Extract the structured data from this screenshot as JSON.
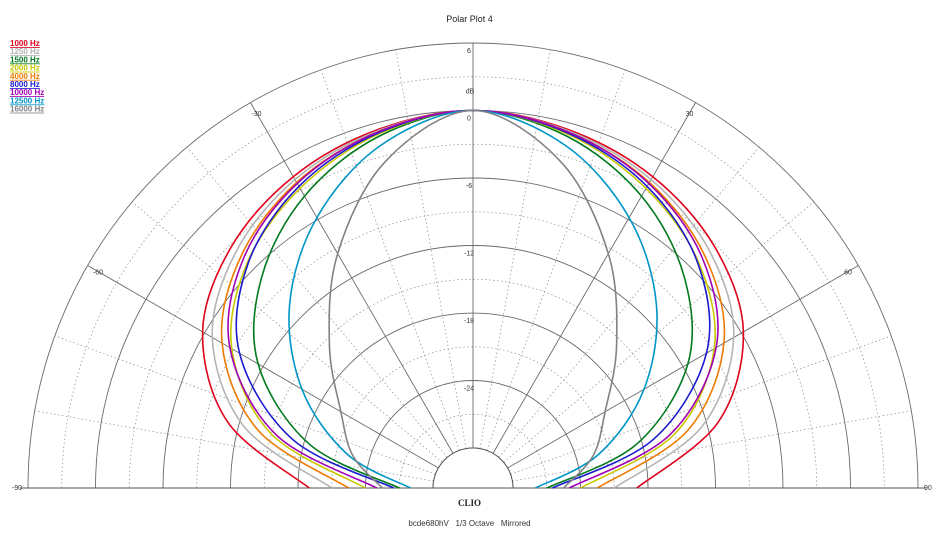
{
  "chart_data": {
    "type": "polar",
    "title": "Polar Plot 4",
    "radial_unit": "dB",
    "radial_range": [
      -30,
      6
    ],
    "radial_ticks": [
      "6",
      "0",
      "-6",
      "-12",
      "-18",
      "-24"
    ],
    "angle_range": [
      -90,
      90
    ],
    "angle_ticks": [
      "-90",
      "-60",
      "-30",
      "30",
      "60",
      "90"
    ],
    "grid": true,
    "legend_position": "top-left",
    "series": [
      {
        "name": "1000 Hz",
        "color": "#e0001a",
        "angles": [
          0,
          15,
          30,
          45,
          60,
          75,
          90
        ],
        "values": [
          0,
          -0.6,
          -1.6,
          -3.2,
          -5.8,
          -11.0,
          -19.0
        ]
      },
      {
        "name": "1250 Hz",
        "color": "#b4b4b4",
        "angles": [
          0,
          15,
          30,
          45,
          60,
          75,
          90
        ],
        "values": [
          0,
          -0.7,
          -1.9,
          -3.8,
          -6.8,
          -12.5,
          -21.0
        ]
      },
      {
        "name": "1500 Hz",
        "color": "#007a1e",
        "angles": [
          0,
          15,
          30,
          45,
          60,
          75,
          90
        ],
        "values": [
          0,
          -1.2,
          -3.6,
          -7.0,
          -11.5,
          -18.5,
          -27.0
        ]
      },
      {
        "name": "2000 Hz",
        "color": "#c8c800",
        "angles": [
          0,
          15,
          30,
          45,
          60,
          75,
          90
        ],
        "values": [
          0,
          -1.0,
          -2.8,
          -5.2,
          -8.8,
          -15.0,
          -24.0
        ]
      },
      {
        "name": "4000 Hz",
        "color": "#ee7a00",
        "angles": [
          0,
          15,
          30,
          45,
          60,
          75,
          90
        ],
        "values": [
          0,
          -0.8,
          -2.2,
          -4.4,
          -7.8,
          -13.8,
          -22.5
        ]
      },
      {
        "name": "8000 Hz",
        "color": "#1a1ad0",
        "angles": [
          0,
          15,
          30,
          45,
          60,
          75,
          90
        ],
        "values": [
          0,
          -0.9,
          -2.6,
          -5.3,
          -9.6,
          -17.0,
          -26.5
        ]
      },
      {
        "name": "10000 Hz",
        "color": "#a000b4",
        "angles": [
          0,
          15,
          30,
          45,
          60,
          75,
          90
        ],
        "values": [
          0,
          -0.8,
          -2.3,
          -4.7,
          -8.6,
          -15.5,
          -25.0
        ]
      },
      {
        "name": "12500 Hz",
        "color": "#0096c8",
        "angles": [
          0,
          15,
          30,
          45,
          60,
          75,
          90
        ],
        "values": [
          0,
          -2.0,
          -5.8,
          -10.5,
          -16.0,
          -22.0,
          -28.0
        ]
      },
      {
        "name": "16000 Hz",
        "color": "#828282",
        "angles": [
          0,
          15,
          30,
          45,
          60,
          75,
          90
        ],
        "values": [
          0,
          -3.5,
          -9.5,
          -15.5,
          -20.0,
          -22.5,
          -25.5
        ]
      }
    ]
  },
  "brand": "CLIO",
  "footer": "bcde680hV   1/3 Octave   Mirrored"
}
